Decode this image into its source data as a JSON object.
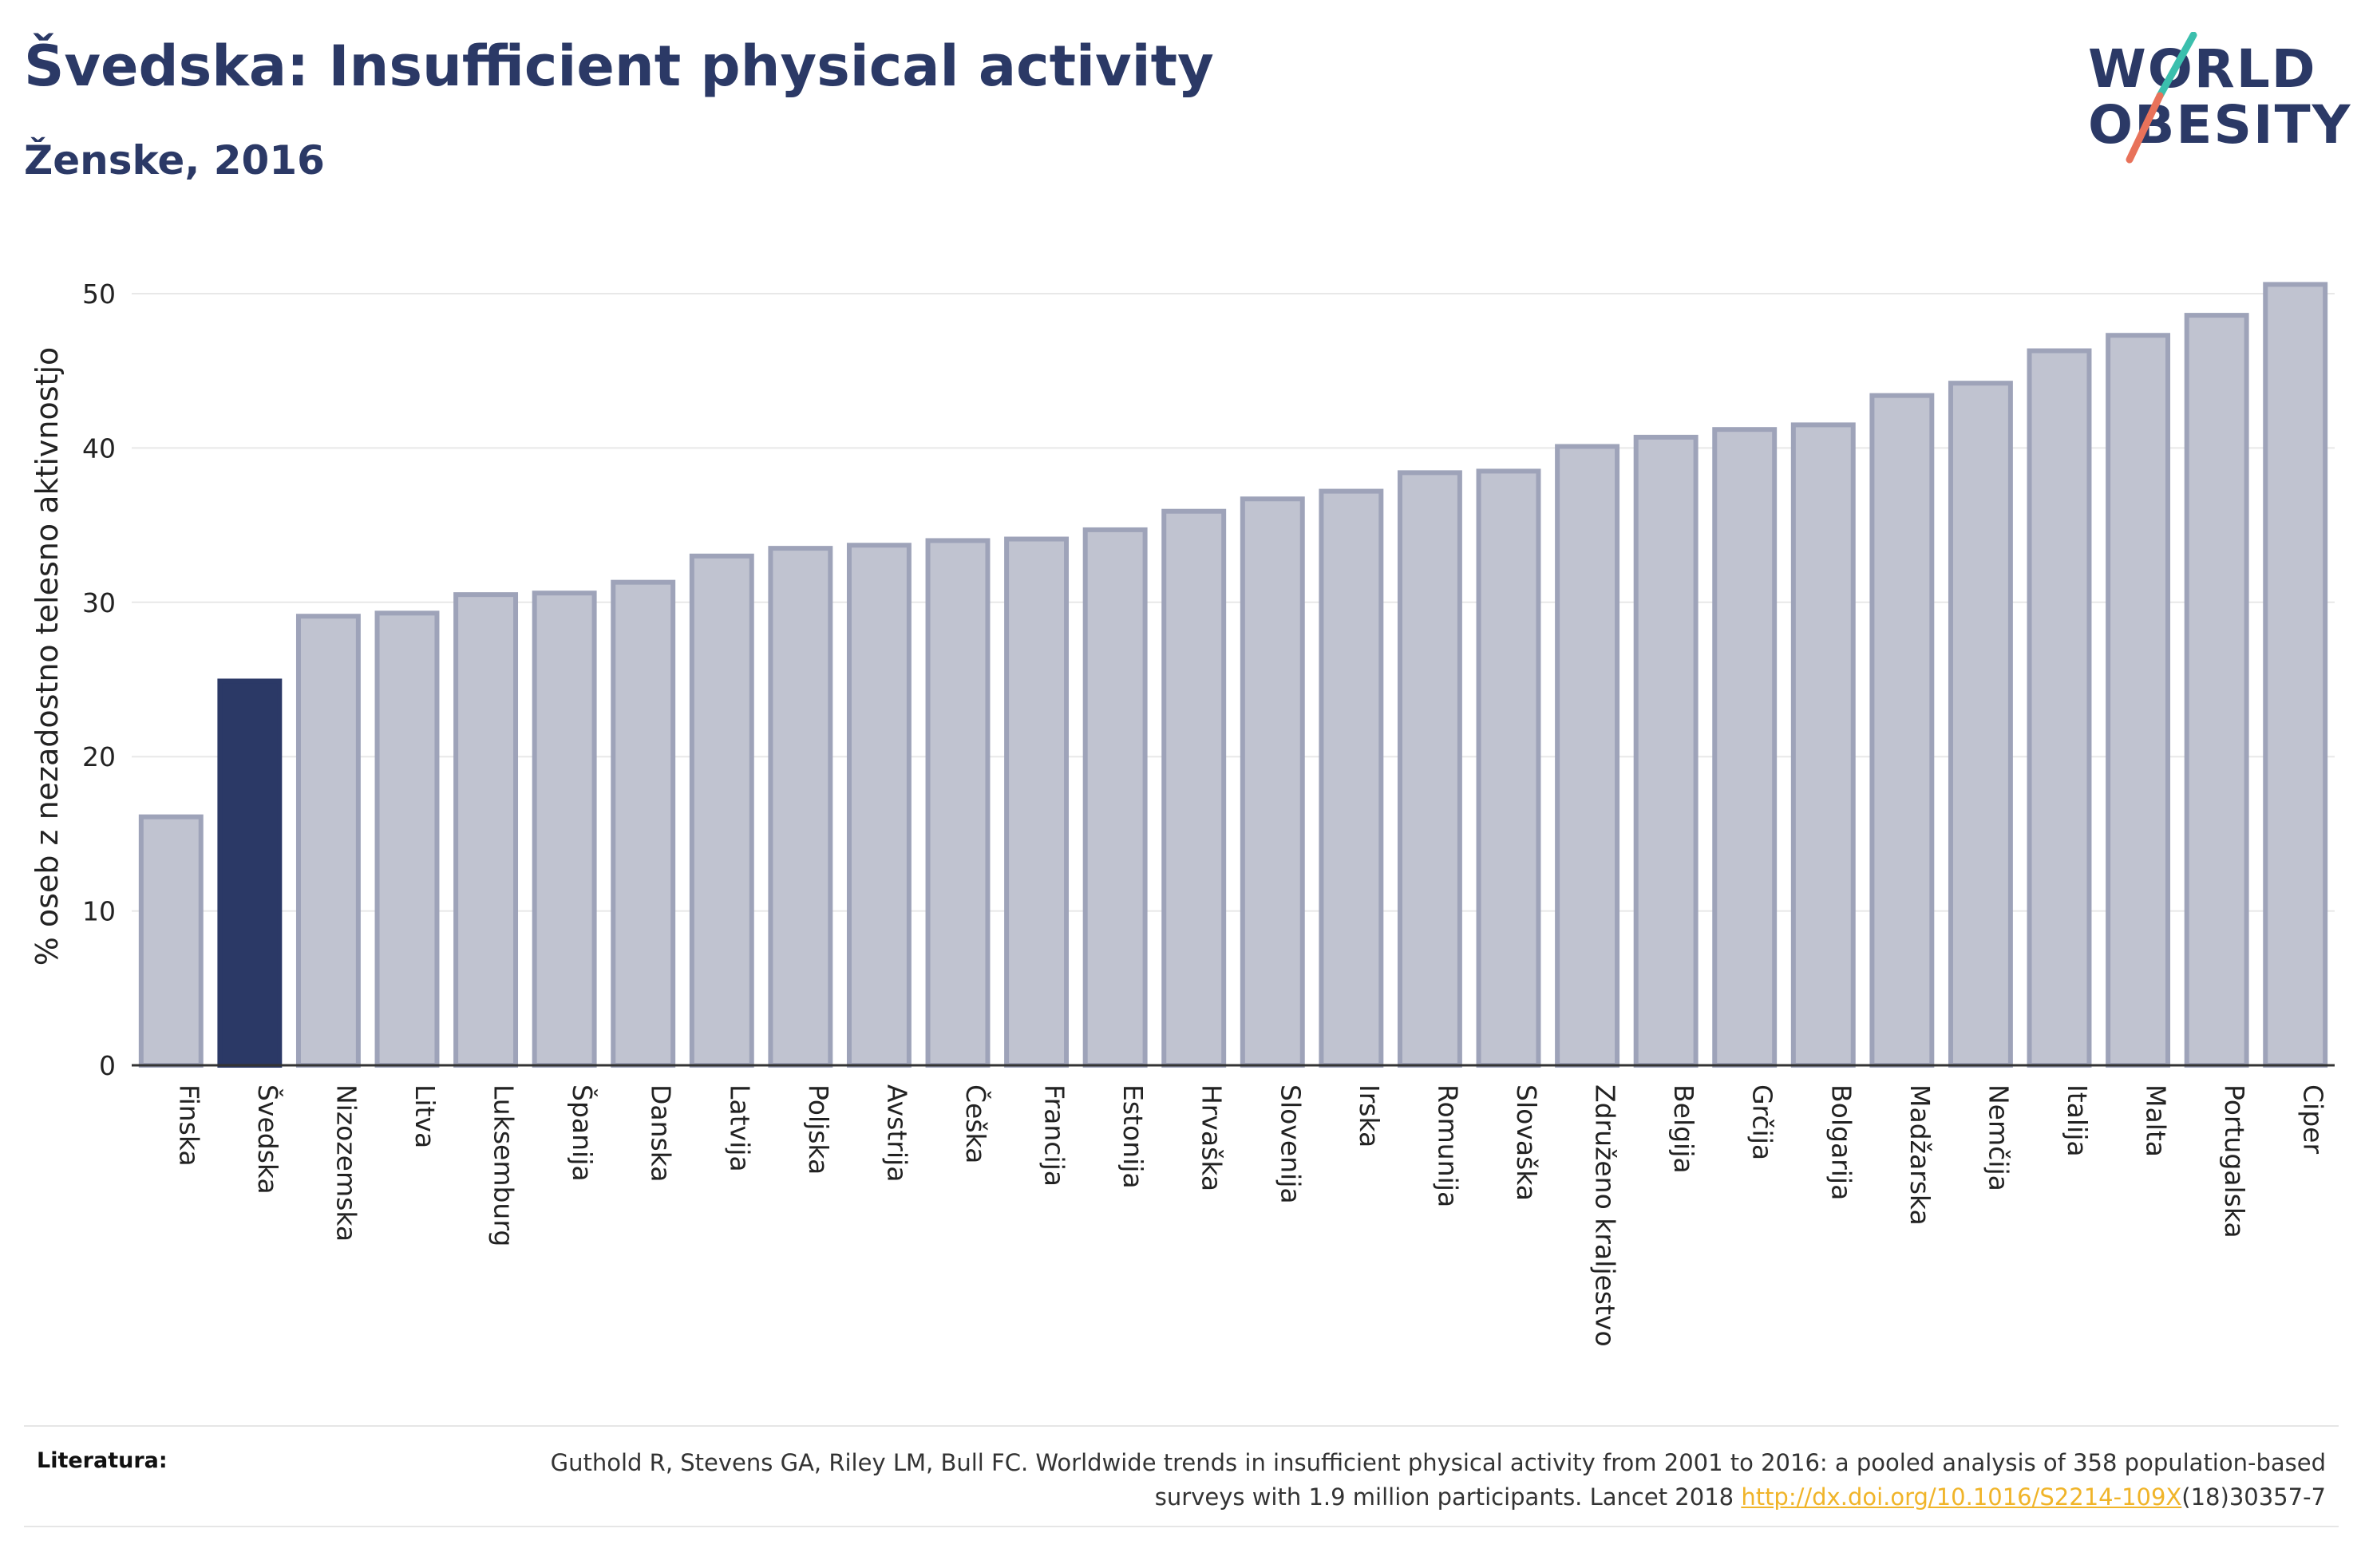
{
  "header": {
    "title": "Švedska: Insufficient physical activity",
    "subtitle": "Ženske, 2016"
  },
  "logo": {
    "line1": "WORLD",
    "line2": "OBESITY",
    "colors": {
      "text": "#2b3966",
      "slash_top": "#3bbfad",
      "slash_bottom": "#e8725a"
    }
  },
  "chart_data": {
    "type": "bar",
    "ylabel": "% oseb z nezadostno telesno aktivnostjo",
    "xlabel": "",
    "ylim": [
      0,
      53
    ],
    "yticks": [
      0,
      10,
      20,
      30,
      40,
      50
    ],
    "grid": true,
    "highlight": "Švedska",
    "colors": {
      "bar": "#c0c3d0",
      "bar_border": "#9ea3b9",
      "highlight": "#2b3966"
    },
    "categories": [
      "Finska",
      "Švedska",
      "Nizozemska",
      "Litva",
      "Luksemburg",
      "Španija",
      "Danska",
      "Latvija",
      "Poljska",
      "Avstrija",
      "Češka",
      "Francija",
      "Estonija",
      "Hrvaška",
      "Slovenija",
      "Irska",
      "Romunija",
      "Slovaška",
      "Združeno kraljestvo",
      "Belgija",
      "Grčija",
      "Bolgarija",
      "Madžarska",
      "Nemčija",
      "Italija",
      "Malta",
      "Portugalska",
      "Ciper"
    ],
    "values": [
      16.1,
      24.9,
      29.1,
      29.3,
      30.5,
      30.6,
      31.3,
      33.0,
      33.5,
      33.7,
      34.0,
      34.1,
      34.7,
      35.9,
      36.7,
      37.2,
      38.4,
      38.5,
      40.1,
      40.7,
      41.2,
      41.5,
      43.4,
      44.2,
      46.3,
      47.3,
      48.6,
      50.6
    ]
  },
  "footer": {
    "label": "Literatura:",
    "citation_prefix": "Guthold R, Stevens GA, Riley LM, Bull FC. Worldwide trends in insufficient physical activity from 2001 to 2016: a pooled analysis of 358 population-based surveys with 1.9 million participants. Lancet 2018 ",
    "citation_link": "http://dx.doi.org/10.1016/S2214-109X",
    "citation_suffix": "(18)30357-7"
  }
}
